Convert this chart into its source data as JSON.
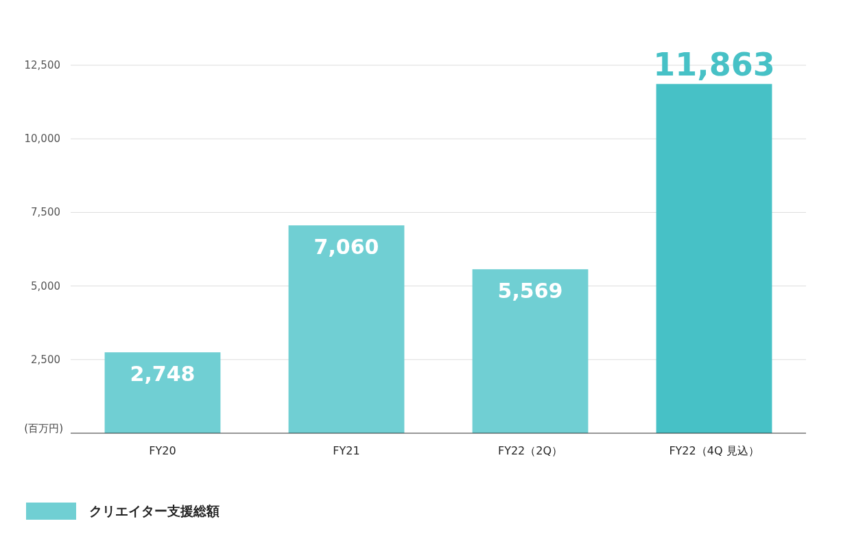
{
  "chart_data": {
    "type": "bar",
    "categories": [
      "FY20",
      "FY21",
      "FY22（2Q）",
      "FY22（4Q 見込）"
    ],
    "series": [
      {
        "name": "クリエイター支援総額",
        "color": "#70cfd3",
        "colors": [
          "#70cfd3",
          "#70cfd3",
          "#70cfd3",
          "#47c1c6"
        ],
        "values": [
          2748,
          7060,
          5569,
          11863
        ],
        "value_labels": [
          "2,748",
          "7,060",
          "5,569",
          "11,863"
        ]
      }
    ],
    "ylabel": "(百万円)",
    "ylim": [
      0,
      12500
    ],
    "yticks": [
      {
        "value": 0,
        "label": null
      },
      {
        "value": 2500,
        "label": "2,500"
      },
      {
        "value": 5000,
        "label": "5,000"
      },
      {
        "value": 7500,
        "label": "7,500"
      },
      {
        "value": 10000,
        "label": "10,000"
      },
      {
        "value": 12500,
        "label": "12,500"
      }
    ],
    "grid": "y",
    "legend": "bottom left"
  }
}
